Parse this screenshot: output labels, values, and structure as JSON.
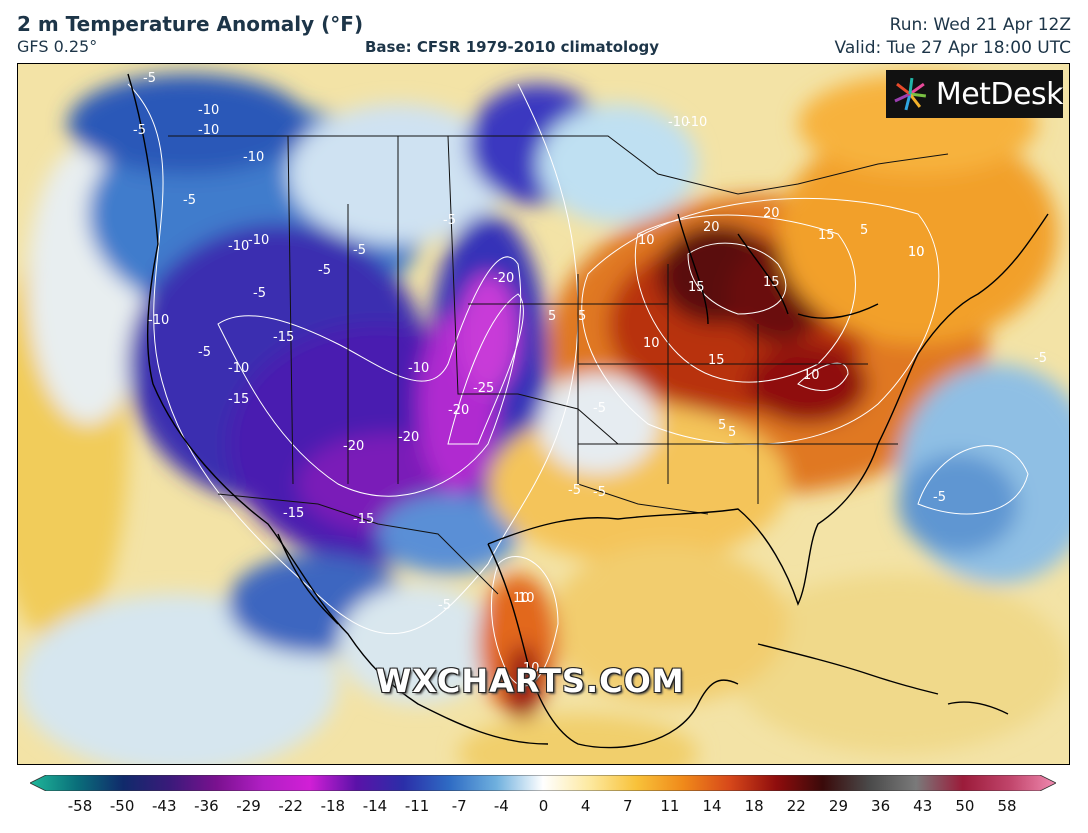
{
  "header": {
    "title": "2 m Temperature Anomaly (°F)",
    "model": "GFS 0.25°",
    "base": "Base: CFSR 1979-2010 climatology",
    "run": "Run: Wed 21 Apr 12Z",
    "valid": "Valid: Tue 27 Apr 18:00 UTC"
  },
  "logo": {
    "text": "MetDesk"
  },
  "watermark": "WXCHARTS.COM",
  "colorbar": {
    "ticks": [
      "-58",
      "-50",
      "-43",
      "-36",
      "-29",
      "-22",
      "-18",
      "-14",
      "-11",
      "-7",
      "-4",
      "0",
      "4",
      "7",
      "11",
      "14",
      "18",
      "22",
      "29",
      "36",
      "43",
      "50",
      "58"
    ],
    "colors": [
      "#1fb89a",
      "#0a6f7a",
      "#102a6b",
      "#3a1a7a",
      "#7a118f",
      "#b11fc4",
      "#d11fd6",
      "#5a12a8",
      "#2b2ea8",
      "#2f6cc4",
      "#6fb0de",
      "#ffffff",
      "#fde9a0",
      "#f8c23a",
      "#f08a1a",
      "#d7481a",
      "#8f0d0d",
      "#3a0a0a",
      "#4a4a4a",
      "#7a7a7a",
      "#9b1b3a",
      "#c0446a",
      "#f08ab0"
    ]
  },
  "map": {
    "contour_labels": [
      "-5",
      "-10",
      "-10",
      "-5",
      "-5",
      "-10",
      "-10",
      "-5",
      "-10",
      "-15",
      "-10",
      "-5",
      "-15",
      "-10",
      "-20",
      "-20",
      "-20",
      "-25",
      "-20",
      "-15",
      "-15",
      "-10",
      "-10",
      "-5",
      "-5",
      "-5",
      "10",
      "20",
      "20",
      "15",
      "15",
      "15",
      "10",
      "10",
      "5",
      "5",
      "5",
      "10",
      "15",
      "10",
      "-5",
      "-5",
      "5",
      "10",
      "10",
      "-5",
      "-5",
      "-5",
      "10",
      "-5",
      "5",
      "-10"
    ]
  }
}
